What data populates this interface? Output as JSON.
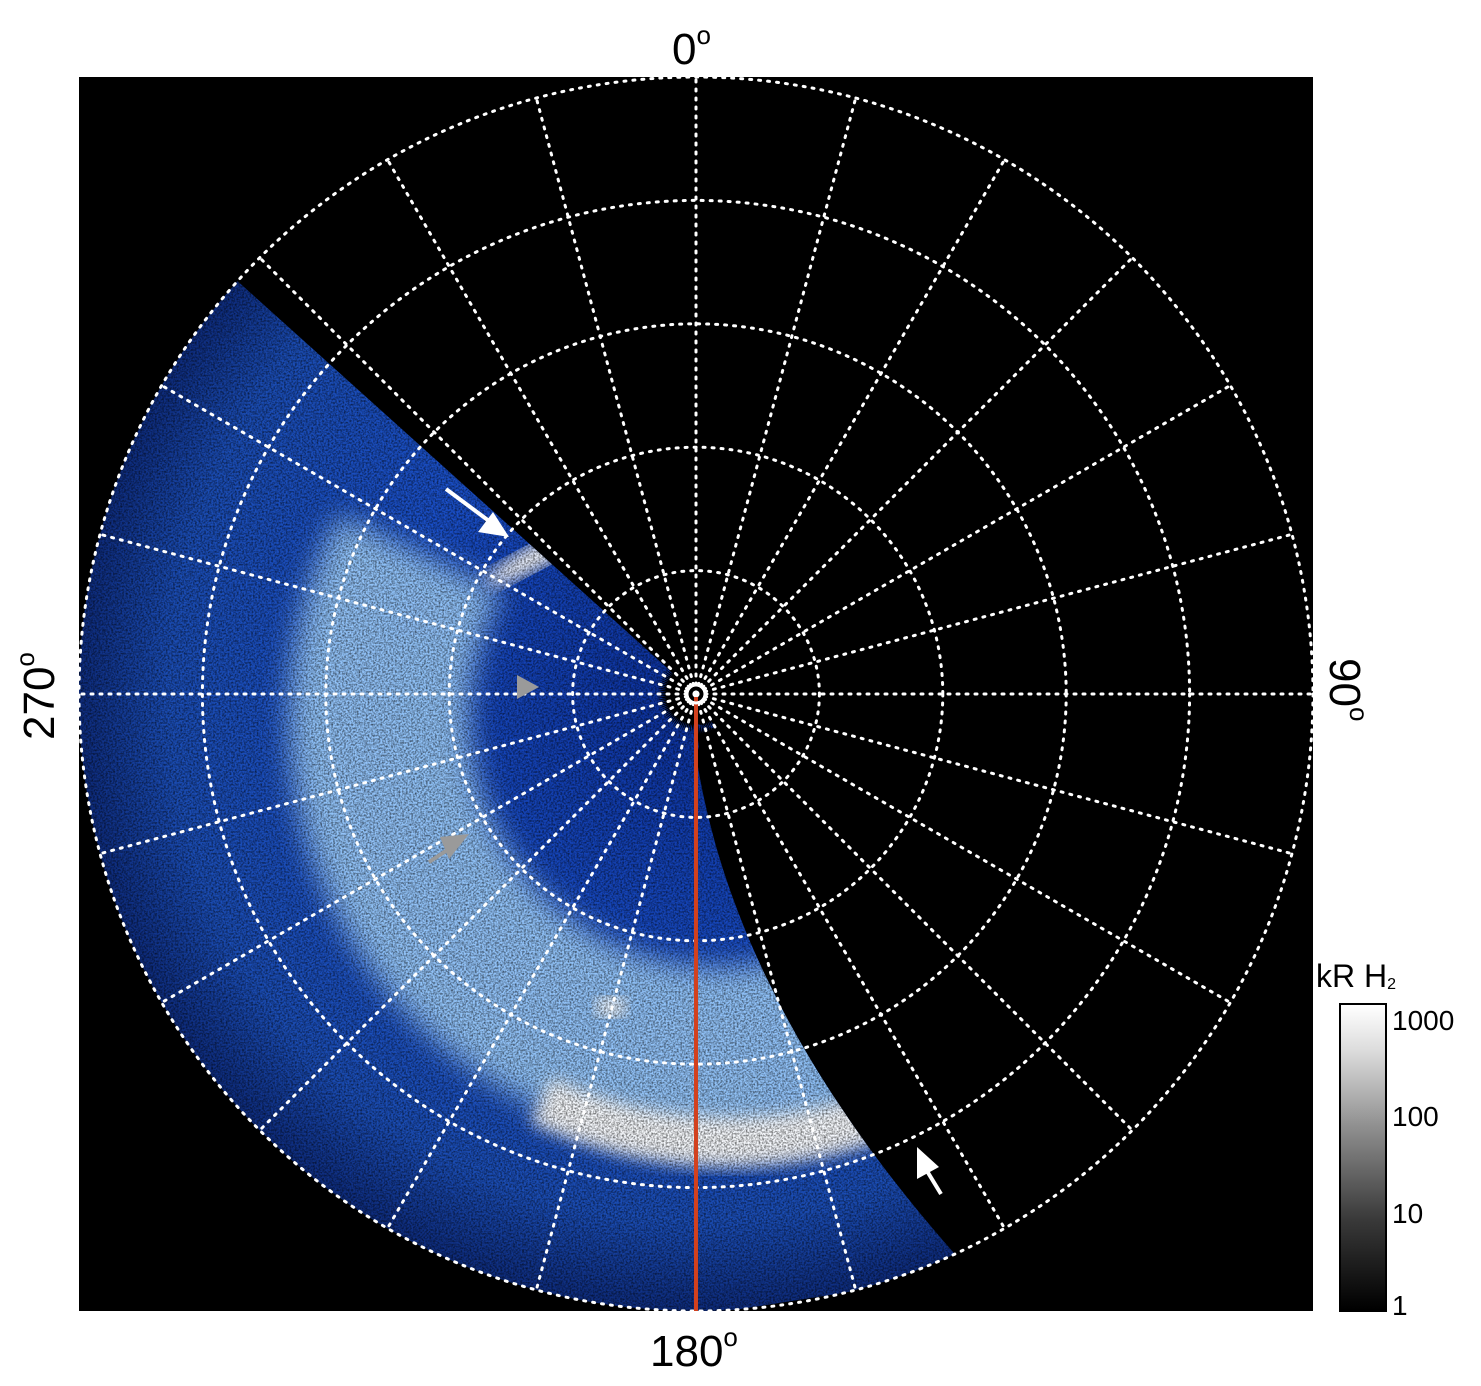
{
  "axis_labels": {
    "top": "0",
    "bottom": "180",
    "left": "270",
    "right": "90",
    "degree_symbol": "o"
  },
  "colorbar": {
    "title": "kR H",
    "title_subscript": "2",
    "ticks": [
      "1000",
      "100",
      "10",
      "1"
    ],
    "scale": "log"
  },
  "colors": {
    "background": "#000000",
    "grid": "#ffffff",
    "aurora_dark": "#0a2a8a",
    "aurora_mid": "#2f7fe0",
    "aurora_bright": "#ffffff",
    "meridian_line": "#d2411e",
    "arrow_white": "#ffffff",
    "arrow_gray": "#9a9a9a"
  },
  "grid": {
    "meridians": 24,
    "latitude_circles": 5,
    "style": "dotted"
  },
  "annotations": [
    {
      "name": "arrow-upper-left",
      "color": "white"
    },
    {
      "name": "arrow-mid-left",
      "color": "gray"
    },
    {
      "name": "arrow-lower-left",
      "color": "gray"
    },
    {
      "name": "arrow-lower-right",
      "color": "white"
    }
  ]
}
